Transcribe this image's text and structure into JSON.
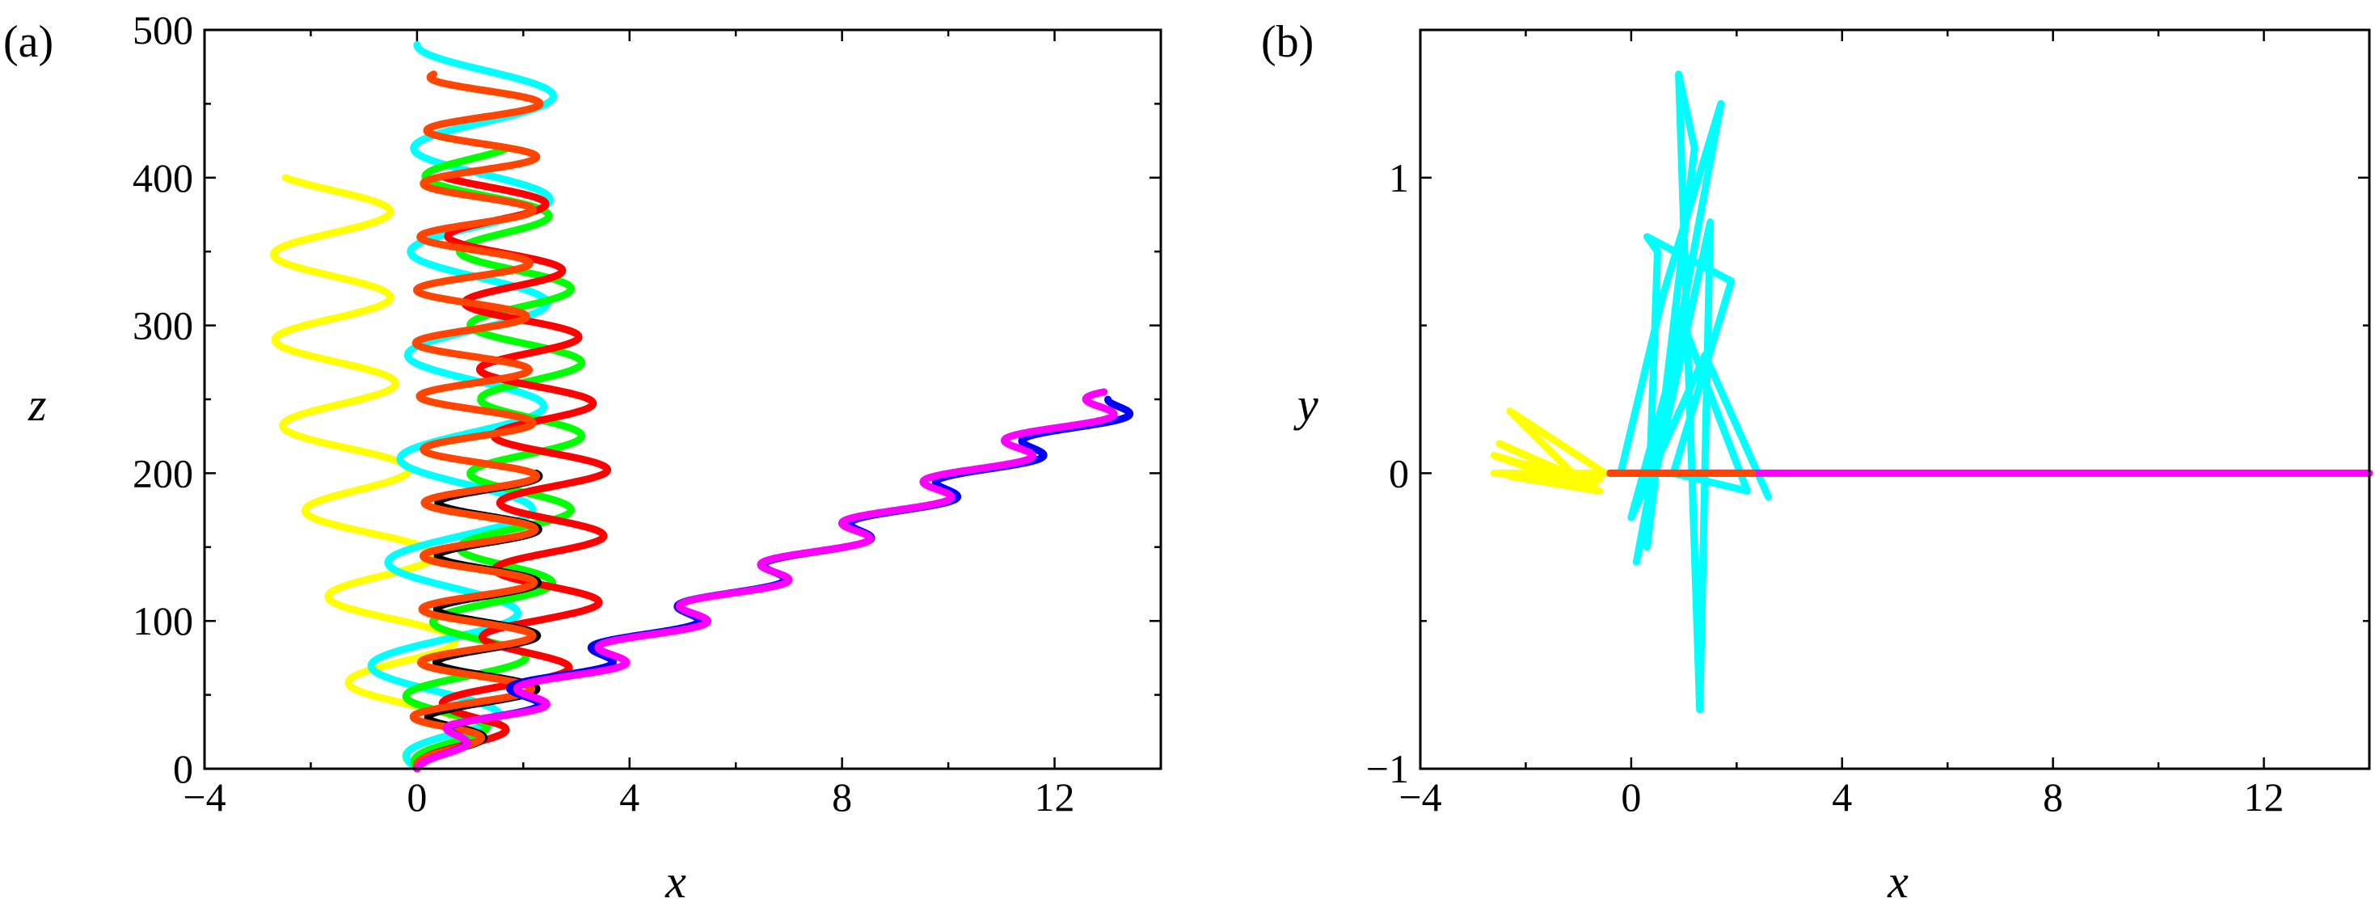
{
  "chart_data": [
    {
      "type": "line",
      "panel_label": "(a)",
      "xlabel": "x",
      "ylabel": "z",
      "xlim": [
        -4,
        14
      ],
      "ylim": [
        0,
        500
      ],
      "xticks": [
        {
          "v": -4,
          "label": "−4"
        },
        {
          "v": 0,
          "label": "0"
        },
        {
          "v": 4,
          "label": "4"
        },
        {
          "v": 8,
          "label": "8"
        },
        {
          "v": 12,
          "label": "12"
        }
      ],
      "yticks": [
        {
          "v": 0,
          "label": "0"
        },
        {
          "v": 100,
          "label": "100"
        },
        {
          "v": 200,
          "label": "200"
        },
        {
          "v": 300,
          "label": "300"
        },
        {
          "v": 400,
          "label": "400"
        },
        {
          "v": 500,
          "label": "500"
        }
      ],
      "xminor": [
        -2,
        2,
        6,
        10
      ],
      "yminor": [
        50,
        150,
        250,
        350,
        450
      ],
      "grid": false,
      "series": [
        {
          "color": "#ffff00",
          "center": [
            [
              0,
              0
            ],
            [
              -0.2,
              60
            ],
            [
              -0.8,
              150
            ],
            [
              -1.4,
              220
            ],
            [
              -1.6,
              300
            ],
            [
              -1.6,
              400
            ]
          ],
          "amp": 1.1,
          "period": 58,
          "z_start": 0,
          "z_end": 400
        },
        {
          "color": "#00ffff",
          "center": [
            [
              0,
              0
            ],
            [
              0.3,
              40
            ],
            [
              0.8,
              150
            ],
            [
              1.1,
              250
            ],
            [
              1.2,
              380
            ],
            [
              1.3,
              490
            ]
          ],
          "amp": 1.3,
          "period": 70,
          "z_start": 0,
          "z_end": 490
        },
        {
          "color": "#00ff00",
          "center": [
            [
              0,
              0
            ],
            [
              0.8,
              50
            ],
            [
              1.8,
              150
            ],
            [
              2.2,
              250
            ],
            [
              1.8,
              350
            ],
            [
              0.9,
              420
            ]
          ],
          "amp": 1.0,
          "period": 50,
          "z_start": 0,
          "z_end": 420
        },
        {
          "color": "#ff0000",
          "center": [
            [
              0,
              0
            ],
            [
              1.4,
              40
            ],
            [
              2.4,
              100
            ],
            [
              2.6,
              200
            ],
            [
              2.0,
              300
            ],
            [
              1.3,
              400
            ]
          ],
          "amp": 1.0,
          "period": 45,
          "z_start": 0,
          "z_end": 400
        },
        {
          "color": "#000000",
          "center": [
            [
              0,
              0
            ],
            [
              1.3,
              40
            ],
            [
              1.35,
              200
            ]
          ],
          "amp": 0.95,
          "period": 36,
          "z_start": 0,
          "z_end": 200
        },
        {
          "color": "#ff4500",
          "center": [
            [
              0,
              0
            ],
            [
              1.1,
              40
            ],
            [
              1.2,
              200
            ],
            [
              1.0,
              300
            ],
            [
              1.3,
              470
            ]
          ],
          "amp": 1.05,
          "period": 36,
          "z_start": 0,
          "z_end": 470
        },
        {
          "color": "#0000ff",
          "center": [
            [
              0,
              0
            ],
            [
              1.2,
              30
            ],
            [
              2.5,
              60
            ],
            [
              13.5,
              250
            ]
          ],
          "amp": 0.55,
          "period": 28,
          "z_start": 0,
          "z_end": 250
        },
        {
          "color": "#ff00ff",
          "center": [
            [
              0,
              0
            ],
            [
              1.2,
              30
            ],
            [
              2.2,
              50
            ],
            [
              13.4,
              255
            ]
          ],
          "amp": 0.6,
          "period": 28,
          "z_start": 0,
          "z_end": 255
        }
      ]
    },
    {
      "type": "line",
      "panel_label": "(b)",
      "xlabel": "x",
      "ylabel": "y",
      "xlim": [
        -4,
        14
      ],
      "ylim": [
        -1,
        1.5
      ],
      "xticks": [
        {
          "v": -4,
          "label": "−4"
        },
        {
          "v": 0,
          "label": "0"
        },
        {
          "v": 4,
          "label": "4"
        },
        {
          "v": 8,
          "label": "8"
        },
        {
          "v": 12,
          "label": "12"
        }
      ],
      "yticks": [
        {
          "v": -1,
          "label": "−1"
        },
        {
          "v": 0,
          "label": "0"
        },
        {
          "v": 1,
          "label": "1"
        }
      ],
      "xminor": [
        -2,
        2,
        6,
        10
      ],
      "yminor": [
        -0.5,
        0.5
      ],
      "grid": false,
      "series": [
        {
          "color": "#00ffff",
          "points": [
            [
              -0.2,
              0.0
            ],
            [
              0.6,
              0.6
            ],
            [
              1.7,
              1.25
            ],
            [
              0.1,
              -0.3
            ],
            [
              1.5,
              0.85
            ],
            [
              1.3,
              -0.8
            ],
            [
              0.9,
              1.35
            ],
            [
              1.2,
              1.1
            ],
            [
              0.3,
              -0.25
            ],
            [
              0.5,
              0.75
            ],
            [
              0.3,
              0.8
            ],
            [
              1.9,
              0.65
            ],
            [
              0.8,
              0.0
            ],
            [
              2.2,
              -0.06
            ],
            [
              1.0,
              0.5
            ],
            [
              0.0,
              -0.15
            ],
            [
              1.4,
              0.4
            ],
            [
              2.6,
              -0.08
            ]
          ]
        },
        {
          "color": "#ffff00",
          "points": [
            [
              -0.5,
              0.0
            ],
            [
              -2.3,
              0.21
            ],
            [
              -1.0,
              -0.02
            ],
            [
              -2.5,
              0.1
            ],
            [
              -0.7,
              -0.04
            ],
            [
              -2.6,
              0.06
            ],
            [
              -0.8,
              -0.05
            ],
            [
              -2.3,
              -0.01
            ],
            [
              -0.6,
              -0.06
            ],
            [
              -2.0,
              0.03
            ],
            [
              -0.6,
              -0.02
            ],
            [
              -2.6,
              0.0
            ],
            [
              -0.4,
              0.0
            ]
          ]
        },
        {
          "color": "#ff00ff",
          "points": [
            [
              -0.4,
              0.0
            ],
            [
              14.0,
              0.0
            ]
          ]
        },
        {
          "color": "#ff4500",
          "points": [
            [
              -0.4,
              0.0
            ],
            [
              2.3,
              0.0
            ]
          ]
        }
      ]
    }
  ]
}
